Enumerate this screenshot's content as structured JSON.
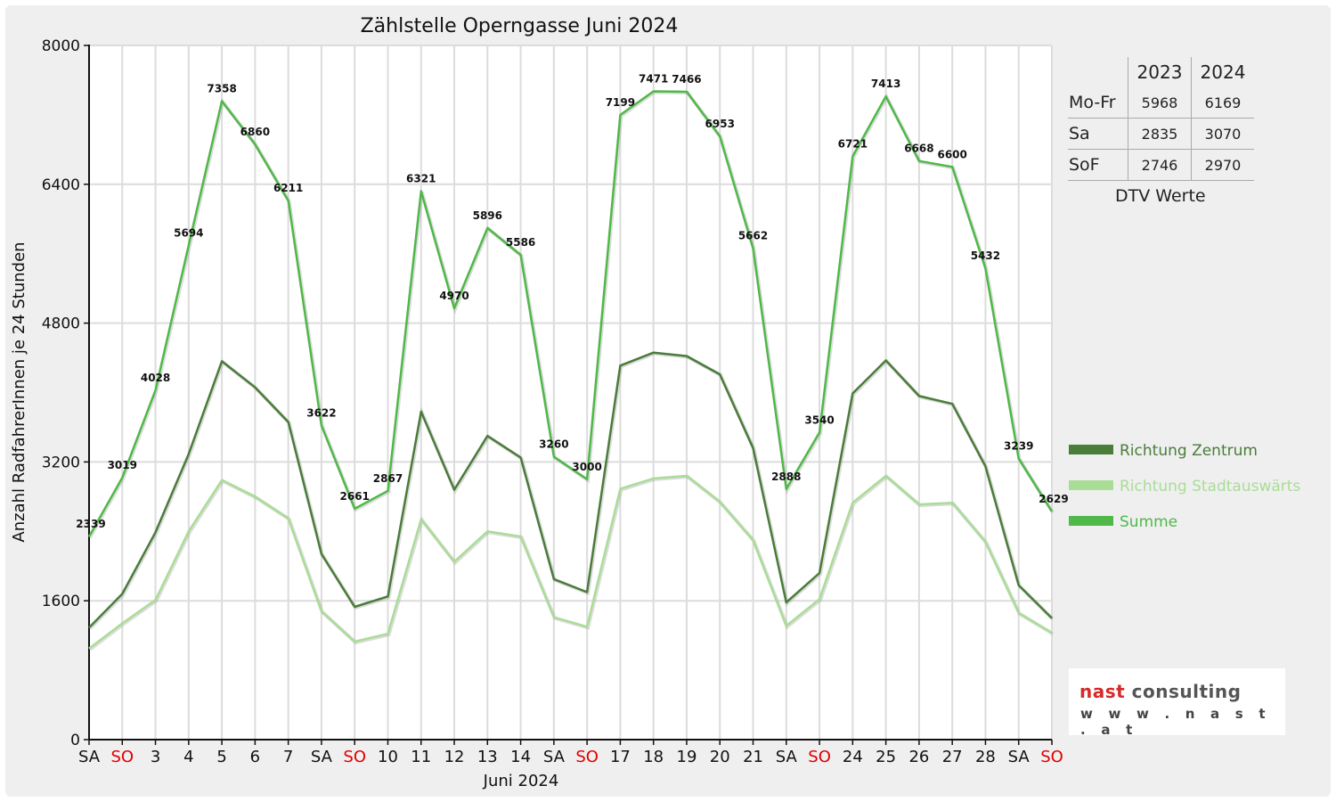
{
  "chart_data": {
    "type": "line",
    "title": "Zählstelle Operngasse Juni 2024",
    "xlabel": "Juni 2024",
    "ylabel": "Anzahl RadfahrerInnen je 24 Stunden",
    "ylim": [
      0,
      8000
    ],
    "yticks": [
      0,
      1600,
      3200,
      4800,
      6400,
      8000
    ],
    "grid": true,
    "legend_position": "right",
    "categories": [
      "SA",
      "SO",
      "3",
      "4",
      "5",
      "6",
      "7",
      "SA",
      "SO",
      "10",
      "11",
      "12",
      "13",
      "14",
      "SA",
      "SO",
      "17",
      "18",
      "19",
      "20",
      "21",
      "SA",
      "SO",
      "24",
      "25",
      "26",
      "27",
      "28",
      "SA",
      "SO"
    ],
    "weekend_categories_color": "#e00000",
    "series": [
      {
        "name": "Richtung Zentrum",
        "color": "#4a7c3a",
        "values": [
          1290,
          1680,
          2390,
          3290,
          4360,
          4060,
          3660,
          2140,
          1530,
          1650,
          3780,
          2880,
          3500,
          3250,
          1850,
          1700,
          4310,
          4460,
          4420,
          4210,
          3360,
          1580,
          1920,
          3990,
          4370,
          3960,
          3870,
          3150,
          1780,
          1400
        ]
      },
      {
        "name": "Richtung Stadtauswärts",
        "color": "#a9dd96",
        "values": [
          1050,
          1340,
          1610,
          2400,
          2990,
          2800,
          2550,
          1480,
          1130,
          1220,
          2540,
          2050,
          2400,
          2340,
          1410,
          1300,
          2890,
          3010,
          3040,
          2740,
          2300,
          1310,
          1620,
          2730,
          3040,
          2710,
          2730,
          2280,
          1460,
          1230
        ]
      },
      {
        "name": "Summe",
        "color": "#4fb848",
        "values": [
          2339,
          3019,
          4028,
          5694,
          7358,
          6860,
          6211,
          3622,
          2661,
          2867,
          6321,
          4970,
          5896,
          5586,
          3260,
          3000,
          7199,
          7471,
          7466,
          6953,
          5662,
          2888,
          3540,
          6721,
          7413,
          6668,
          6600,
          5432,
          3239,
          2629
        ]
      }
    ],
    "data_labels_series": "Summe"
  },
  "dtv_table": {
    "headers": [
      "",
      "2023",
      "2024"
    ],
    "rows": [
      {
        "label": "Mo-Fr",
        "v2023": "5968",
        "v2024": "6169"
      },
      {
        "label": "Sa",
        "v2023": "2835",
        "v2024": "3070"
      },
      {
        "label": "SoF",
        "v2023": "2746",
        "v2024": "2970"
      }
    ],
    "caption": "DTV Werte"
  },
  "logo": {
    "name_part1": "nast",
    "name_part2": " consulting",
    "url": "w w w . n a s t . a t"
  }
}
